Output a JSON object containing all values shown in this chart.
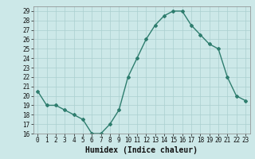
{
  "x": [
    0,
    1,
    2,
    3,
    4,
    5,
    6,
    7,
    8,
    9,
    10,
    11,
    12,
    13,
    14,
    15,
    16,
    17,
    18,
    19,
    20,
    21,
    22,
    23
  ],
  "y": [
    20.5,
    19.0,
    19.0,
    18.5,
    18.0,
    17.5,
    16.0,
    16.0,
    17.0,
    18.5,
    22.0,
    24.0,
    26.0,
    27.5,
    28.5,
    29.0,
    29.0,
    27.5,
    26.5,
    25.5,
    25.0,
    22.0,
    20.0,
    19.5
  ],
  "line_color": "#2e7d6e",
  "marker": "D",
  "marker_size": 2,
  "line_width": 1.0,
  "bg_color": "#cce8e8",
  "grid_color": "#aacfcf",
  "xlabel": "Humidex (Indice chaleur)",
  "xlim": [
    -0.5,
    23.5
  ],
  "ylim": [
    16,
    29.5
  ],
  "yticks": [
    16,
    17,
    18,
    19,
    20,
    21,
    22,
    23,
    24,
    25,
    26,
    27,
    28,
    29
  ],
  "xticks": [
    0,
    1,
    2,
    3,
    4,
    5,
    6,
    7,
    8,
    9,
    10,
    11,
    12,
    13,
    14,
    15,
    16,
    17,
    18,
    19,
    20,
    21,
    22,
    23
  ],
  "tick_label_fontsize": 5.5,
  "xlabel_fontsize": 7.0
}
